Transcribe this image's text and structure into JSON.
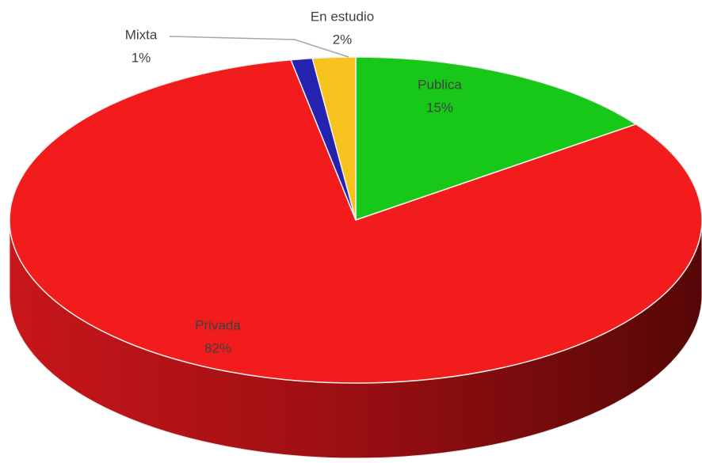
{
  "chart_data": {
    "type": "pie3d",
    "categories": [
      "Publica",
      "Privada",
      "Mixta",
      "En estudio"
    ],
    "values": [
      15,
      82,
      1,
      2
    ],
    "value_labels": [
      "15%",
      "82%",
      "1%",
      "2%"
    ],
    "colors": [
      "#18c818",
      "#f21c1c",
      "#2323b0",
      "#f7c21e"
    ]
  }
}
